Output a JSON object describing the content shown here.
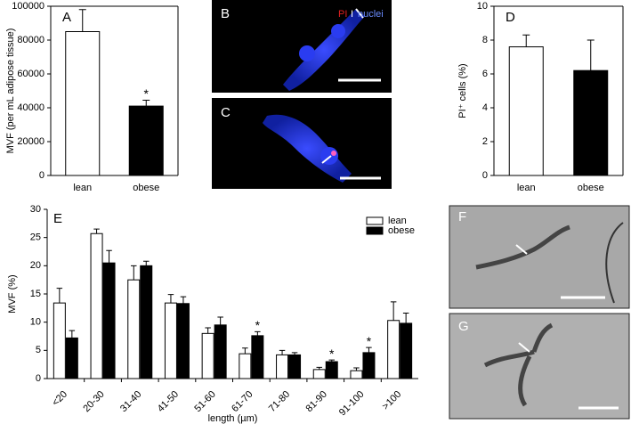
{
  "chart_data": [
    {
      "type": "bar",
      "panel_label": "A",
      "ylabel": "MVF (per mL adipose tissue)",
      "categories": [
        "lean",
        "obese"
      ],
      "series": [
        {
          "values": [
            85000,
            41000
          ],
          "errors": [
            13000,
            3500
          ],
          "colors": [
            "#ffffff",
            "#000000"
          ],
          "significance": [
            null,
            "*"
          ]
        }
      ],
      "ylim": [
        0,
        100000
      ],
      "yticks": [
        0,
        20000,
        40000,
        60000,
        80000,
        100000
      ]
    },
    {
      "type": "bar",
      "panel_label": "D",
      "ylabel": "PI⁺ cells (%)",
      "categories": [
        "lean",
        "obese"
      ],
      "series": [
        {
          "values": [
            7.6,
            6.2
          ],
          "errors": [
            0.7,
            1.8
          ],
          "colors": [
            "#ffffff",
            "#000000"
          ],
          "significance": [
            null,
            null
          ]
        }
      ],
      "ylim": [
        0,
        10
      ],
      "yticks": [
        0,
        2,
        4,
        6,
        8,
        10
      ]
    },
    {
      "type": "grouped-bar",
      "panel_label": "E",
      "ylabel": "MVF (%)",
      "xlabel": "length (µm)",
      "categories": [
        "<20",
        "20-30",
        "31-40",
        "41-50",
        "51-60",
        "61-70",
        "71-80",
        "81-90",
        "91-100",
        ">100"
      ],
      "series": [
        {
          "name": "lean",
          "color": "#ffffff",
          "values": [
            13.4,
            25.7,
            17.5,
            13.4,
            8,
            4.4,
            4.2,
            1.6,
            1.4,
            10.3
          ],
          "errors": [
            2.6,
            0.8,
            2.5,
            1.5,
            1,
            1,
            0.8,
            0.4,
            0.5,
            3.3
          ],
          "significance": [
            null,
            null,
            null,
            null,
            null,
            null,
            null,
            null,
            null,
            null
          ]
        },
        {
          "name": "obese",
          "color": "#000000",
          "values": [
            7.2,
            20.5,
            20,
            13.3,
            9.5,
            7.6,
            4.2,
            3,
            4.6,
            9.8
          ],
          "errors": [
            1.3,
            2.2,
            0.8,
            1.2,
            1.4,
            0.7,
            0.4,
            0.3,
            0.9,
            1.8
          ],
          "significance": [
            null,
            null,
            null,
            null,
            null,
            "*",
            null,
            "*",
            "*",
            null
          ]
        }
      ],
      "ylim": [
        0,
        30
      ],
      "yticks": [
        0,
        5,
        10,
        15,
        20,
        25,
        30
      ],
      "legend": "upper right"
    }
  ],
  "images": [
    {
      "label": "B"
    },
    {
      "label": "C"
    },
    {
      "label": "F"
    },
    {
      "label": "G"
    }
  ],
  "image_legend": {
    "stain": "PI",
    "separator": "I",
    "counterstain": "nuclei"
  }
}
